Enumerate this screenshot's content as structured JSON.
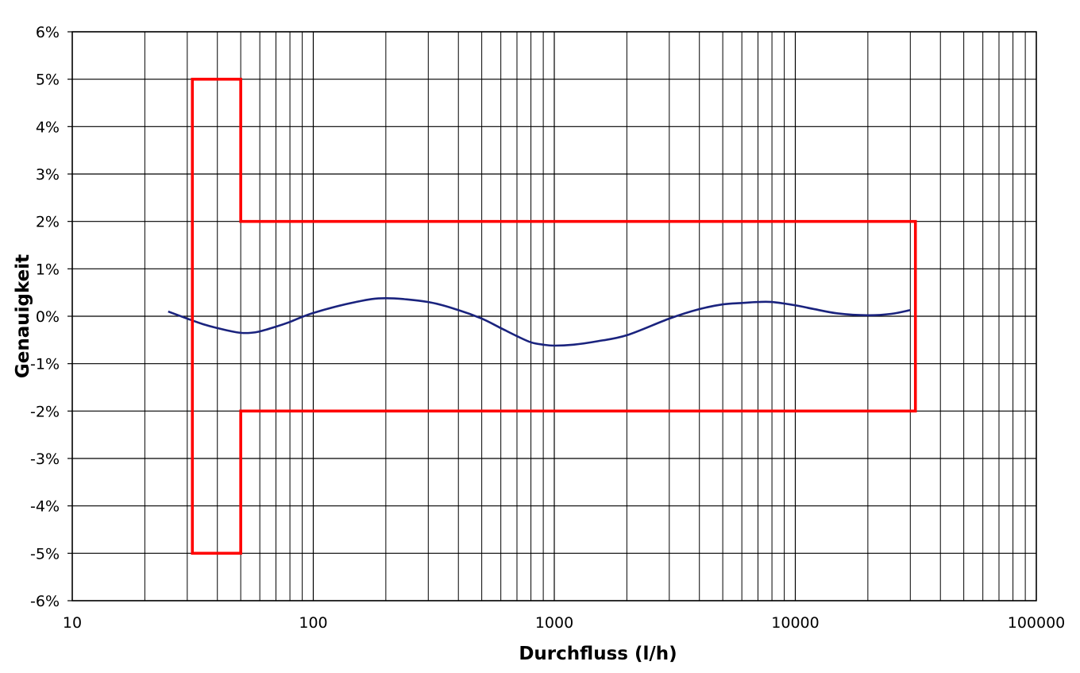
{
  "chart_data": {
    "type": "line",
    "title": "",
    "xlabel": "Durchfluss (l/h)",
    "ylabel": "Genauigkeit",
    "x_scale": "log",
    "xlim": [
      10,
      100000
    ],
    "ylim": [
      -6,
      6
    ],
    "x_tick_values": [
      10,
      100,
      1000,
      10000,
      100000
    ],
    "x_tick_labels": [
      "10",
      "100",
      "1000",
      "10000",
      "100000"
    ],
    "y_tick_values": [
      6,
      5,
      4,
      3,
      2,
      1,
      0,
      -1,
      -2,
      -3,
      -4,
      -5,
      -6
    ],
    "y_tick_labels": [
      "6%",
      "5%",
      "4%",
      "3%",
      "2%",
      "1%",
      "0%",
      "-1%",
      "-2%",
      "-3%",
      "-4%",
      "-5%",
      "-6%"
    ],
    "grid": true,
    "series": [
      {
        "role": "measured-curve",
        "color": "#1a237e",
        "x": [
          25,
          30,
          35,
          40,
          45,
          50,
          55,
          60,
          70,
          80,
          100,
          150,
          200,
          300,
          400,
          500,
          600,
          700,
          800,
          900,
          1000,
          1200,
          1500,
          2000,
          3000,
          4000,
          5000,
          6000,
          7000,
          8000,
          10000,
          12000,
          15000,
          20000,
          25000,
          30000
        ],
        "y": [
          0.1,
          -0.05,
          -0.17,
          -0.25,
          -0.31,
          -0.35,
          -0.35,
          -0.32,
          -0.22,
          -0.12,
          0.07,
          0.3,
          0.38,
          0.3,
          0.13,
          -0.05,
          -0.25,
          -0.42,
          -0.55,
          -0.6,
          -0.62,
          -0.6,
          -0.53,
          -0.4,
          -0.05,
          0.15,
          0.25,
          0.28,
          0.3,
          0.3,
          0.23,
          0.15,
          0.06,
          0.02,
          0.05,
          0.13
        ]
      },
      {
        "role": "upper-tolerance-limit",
        "color": "#ff0000",
        "x": [
          31.5,
          31.5,
          50,
          50,
          31500,
          31500
        ],
        "y": [
          0,
          5,
          5,
          2,
          2,
          0
        ]
      },
      {
        "role": "lower-tolerance-limit",
        "color": "#ff0000",
        "x": [
          31.5,
          31.5,
          50,
          50,
          31500,
          31500
        ],
        "y": [
          0,
          -5,
          -5,
          -2,
          -2,
          0
        ]
      }
    ]
  }
}
